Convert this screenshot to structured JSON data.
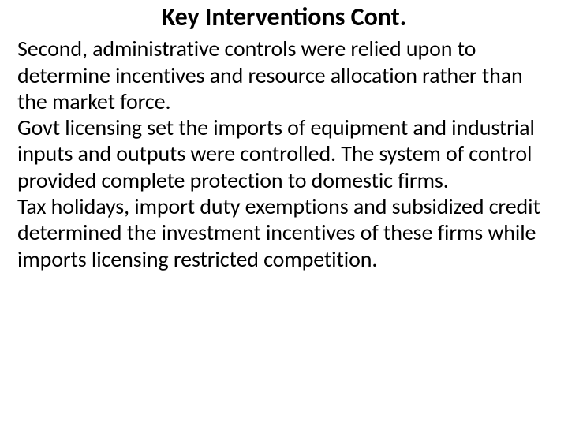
{
  "slide": {
    "title": "Key Interventions Cont.",
    "paragraphs": [
      "Second, administrative controls were relied upon to determine incentives and resource allocation rather than the market force.",
      "Govt licensing set the imports of equipment and industrial inputs and outputs were controlled. The system of control provided complete protection to domestic firms.",
      "Tax holidays, import duty exemptions and subsidized credit determined the investment incentives of these firms while imports licensing restricted competition."
    ]
  },
  "style": {
    "background_color": "#ffffff",
    "text_color": "#000000",
    "title_fontsize": 32,
    "title_fontweight": 700,
    "body_fontsize": 28,
    "body_fontweight": 400,
    "font_family": "Calibri"
  }
}
